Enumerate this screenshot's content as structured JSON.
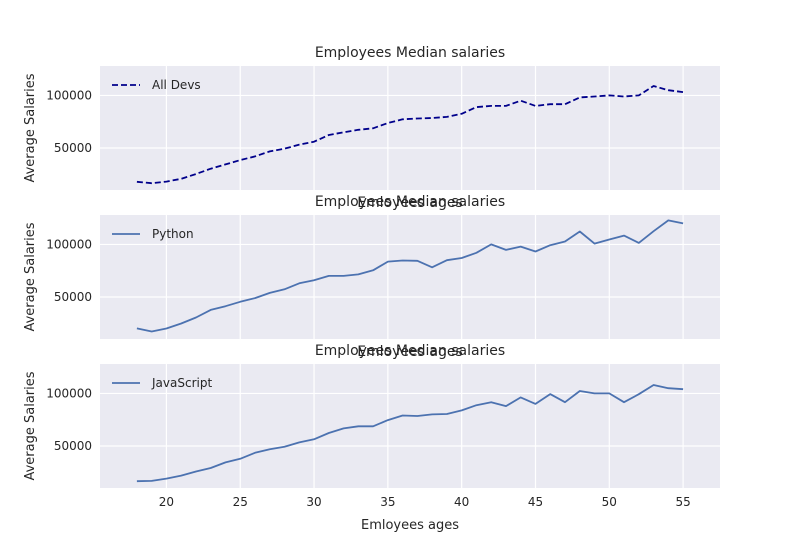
{
  "chart_data": {
    "type": "line",
    "title": "Employees Median salaries",
    "xlabel": "Emloyees ages",
    "ylabel": "Average Salaries",
    "ages": [
      18,
      19,
      20,
      21,
      22,
      23,
      24,
      25,
      26,
      27,
      28,
      29,
      30,
      31,
      32,
      33,
      34,
      35,
      36,
      37,
      38,
      39,
      40,
      41,
      42,
      43,
      44,
      45,
      46,
      47,
      48,
      49,
      50,
      51,
      52,
      53,
      54,
      55
    ],
    "x_ticks": [
      20,
      25,
      30,
      35,
      40,
      45,
      50,
      55
    ],
    "xlim": [
      15.5,
      57.5
    ],
    "y_ticks": [
      50000,
      100000
    ],
    "ylim": [
      10000,
      128000
    ],
    "grid": true,
    "legend_loc": "upper left",
    "panels": [
      {
        "title": "Employees Median salaries",
        "overlap_text": "Emloyees ages",
        "series": {
          "name": "All Devs",
          "color": "#00008b",
          "dash": true,
          "values": [
            17784,
            16500,
            18012,
            20628,
            25206,
            30252,
            34368,
            38496,
            42000,
            46752,
            49320,
            53200,
            56000,
            62316,
            64928,
            67317,
            68748,
            73752,
            77232,
            78000,
            78508,
            79536,
            82488,
            88935,
            90000,
            90056,
            95000,
            90000,
            91633,
            91660,
            98150,
            98964,
            100000,
            98988,
            100000,
            108923,
            105000,
            103117
          ]
        }
      },
      {
        "title": "Employees Median salaries",
        "overlap_text": "Emloyees ages",
        "series": {
          "name": "Python",
          "color": "#4c72b0",
          "dash": false,
          "values": [
            20046,
            17100,
            20000,
            24744,
            30500,
            37732,
            41247,
            45372,
            48876,
            53850,
            57287,
            63016,
            65998,
            70003,
            70000,
            71496,
            75370,
            83640,
            84666,
            84392,
            78254,
            85000,
            87038,
            91991,
            100000,
            94796,
            97962,
            93302,
            99240,
            102736,
            112285,
            100771,
            104708,
            108423,
            101407,
            112542,
            122870,
            120000
          ]
        }
      },
      {
        "title": "Employees Median salaries",
        "overlap_text": "",
        "series": {
          "name": "JavaScript",
          "color": "#4c72b0",
          "dash": false,
          "values": [
            16446,
            16791,
            18942,
            21780,
            25704,
            29000,
            34372,
            37810,
            43515,
            46823,
            49293,
            53437,
            56373,
            62375,
            66674,
            68745,
            68746,
            74583,
            79000,
            78508,
            79996,
            80403,
            83820,
            88833,
            91660,
            87892,
            96243,
            90000,
            99313,
            91660,
            102264,
            100000,
            100000,
            91660,
            99240,
            108000,
            105000,
            104000
          ]
        }
      }
    ]
  }
}
